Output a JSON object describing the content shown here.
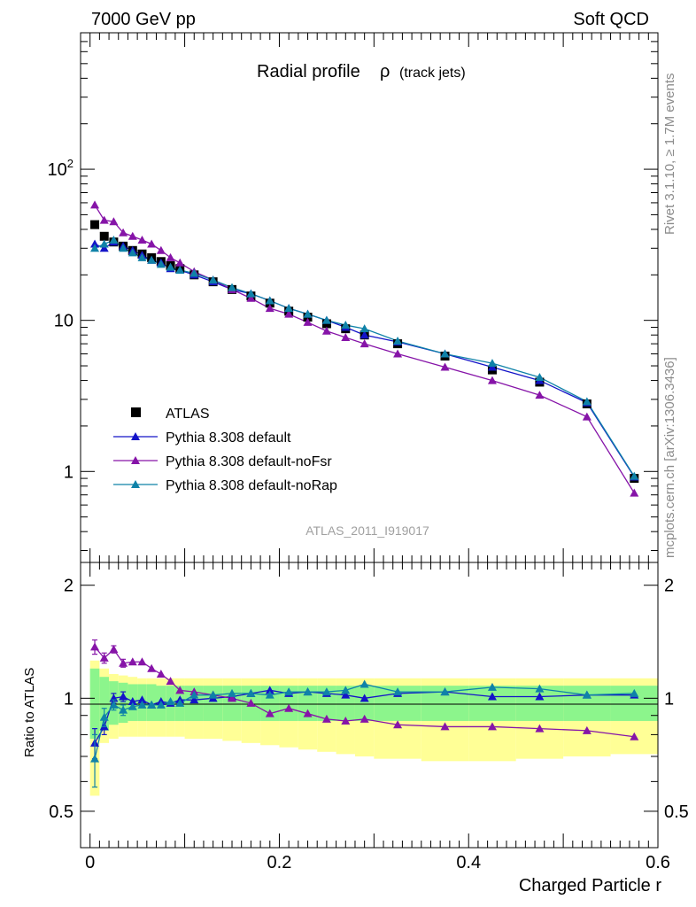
{
  "header": {
    "left": "7000 GeV pp",
    "right": "Soft QCD"
  },
  "side": {
    "rivet": "Rivet 3.1.10, ≥ 1.7M events",
    "mcplots": "mcplots.cern.ch [arXiv:1306.3436]"
  },
  "analysis_id": "ATLAS_2011_I919017",
  "colors": {
    "data": "#000000",
    "default": "#1414c8",
    "noFsr": "#8614a8",
    "noRap": "#0f82a8",
    "band_inner": "#8cf58c",
    "band_outer": "#ffff96"
  },
  "chart_data": [
    {
      "type": "scatter",
      "panel": "main",
      "title": "Radial profile",
      "title_symbol": "ρ",
      "title_sub": "(track jets)",
      "xlabel": "",
      "ylabel": "",
      "xlim": [
        -0.01,
        0.6
      ],
      "ylim": [
        0.25,
        800
      ],
      "yscale": "log",
      "yticks": [
        {
          "v": 1,
          "label": "1"
        },
        {
          "v": 10,
          "label": "10"
        },
        {
          "v": 100,
          "label": "10",
          "sup": "2"
        }
      ],
      "legend_position": "bottom-left",
      "x": [
        0.005,
        0.015,
        0.025,
        0.035,
        0.045,
        0.055,
        0.065,
        0.075,
        0.085,
        0.095,
        0.11,
        0.13,
        0.15,
        0.17,
        0.19,
        0.21,
        0.23,
        0.25,
        0.27,
        0.29,
        0.325,
        0.375,
        0.425,
        0.475,
        0.525,
        0.575
      ],
      "series": [
        {
          "name": "ATLAS",
          "key": "data",
          "marker": "square",
          "values": [
            43,
            36,
            33,
            31,
            29,
            27.5,
            26,
            24.5,
            23,
            22,
            20,
            18,
            16,
            14.5,
            13,
            11.5,
            10.5,
            9.5,
            8.8,
            8,
            7,
            5.8,
            4.7,
            3.9,
            2.8,
            0.9
          ]
        },
        {
          "name": "Pythia 8.308 default",
          "key": "default",
          "marker": "triangle",
          "values": [
            32,
            30,
            33,
            31,
            29,
            27,
            25,
            24,
            22,
            21.5,
            20,
            18,
            16,
            15,
            13.5,
            12,
            11,
            10,
            9,
            8,
            7.2,
            6,
            4.9,
            4,
            2.85,
            0.92
          ]
        },
        {
          "name": "Pythia 8.308 default-noFsr",
          "key": "noFsr",
          "marker": "triangle",
          "values": [
            58,
            46,
            45,
            38,
            36,
            34,
            32,
            29,
            26,
            24,
            21,
            18.5,
            16,
            14,
            12,
            11,
            9.7,
            8.5,
            7.7,
            7,
            6,
            4.9,
            4,
            3.2,
            2.3,
            0.72
          ]
        },
        {
          "name": "Pythia 8.308 default-noRap",
          "key": "noRap",
          "marker": "triangle",
          "values": [
            30,
            32,
            34,
            30,
            28,
            26,
            25,
            23.5,
            22.5,
            21.5,
            20.5,
            18.5,
            16.5,
            15,
            13.5,
            12,
            11,
            10,
            9.3,
            8.8,
            7.3,
            6,
            5.2,
            4.2,
            2.9,
            0.93
          ]
        }
      ]
    },
    {
      "type": "scatter",
      "panel": "ratio",
      "xlabel": "Charged Particle r",
      "ylabel": "Ratio to ATLAS",
      "xlim": [
        -0.01,
        0.6
      ],
      "ylim": [
        0.4,
        2.3
      ],
      "yscale": "log",
      "yticks": [
        {
          "v": 0.5,
          "label": "0.5"
        },
        {
          "v": 1,
          "label": "1"
        },
        {
          "v": 2,
          "label": "2"
        }
      ],
      "xticks": [
        {
          "v": 0,
          "label": "0"
        },
        {
          "v": 0.2,
          "label": "0.2"
        },
        {
          "v": 0.4,
          "label": "0.4"
        },
        {
          "v": 0.6,
          "label": "0.6"
        }
      ],
      "band_edges": [
        0,
        0.01,
        0.02,
        0.03,
        0.04,
        0.05,
        0.06,
        0.07,
        0.08,
        0.09,
        0.1,
        0.12,
        0.14,
        0.16,
        0.18,
        0.2,
        0.22,
        0.24,
        0.26,
        0.28,
        0.3,
        0.35,
        0.4,
        0.45,
        0.5,
        0.55,
        0.6
      ],
      "band_inner": [
        [
          0.78,
          1.2
        ],
        [
          0.82,
          1.14
        ],
        [
          0.85,
          1.11
        ],
        [
          0.86,
          1.1
        ],
        [
          0.87,
          1.09
        ],
        [
          0.87,
          1.09
        ],
        [
          0.87,
          1.09
        ],
        [
          0.87,
          1.08
        ],
        [
          0.87,
          1.08
        ],
        [
          0.87,
          1.08
        ],
        [
          0.87,
          1.08
        ],
        [
          0.87,
          1.08
        ],
        [
          0.87,
          1.08
        ],
        [
          0.87,
          1.08
        ],
        [
          0.87,
          1.08
        ],
        [
          0.87,
          1.08
        ],
        [
          0.87,
          1.08
        ],
        [
          0.87,
          1.08
        ],
        [
          0.87,
          1.08
        ],
        [
          0.87,
          1.08
        ],
        [
          0.87,
          1.08
        ],
        [
          0.87,
          1.08
        ],
        [
          0.87,
          1.08
        ],
        [
          0.87,
          1.08
        ],
        [
          0.87,
          1.08
        ],
        [
          0.87,
          1.08
        ]
      ],
      "band_outer": [
        [
          0.55,
          1.26
        ],
        [
          0.76,
          1.2
        ],
        [
          0.78,
          1.16
        ],
        [
          0.79,
          1.15
        ],
        [
          0.79,
          1.14
        ],
        [
          0.79,
          1.13
        ],
        [
          0.79,
          1.13
        ],
        [
          0.79,
          1.13
        ],
        [
          0.79,
          1.13
        ],
        [
          0.79,
          1.13
        ],
        [
          0.78,
          1.13
        ],
        [
          0.78,
          1.13
        ],
        [
          0.77,
          1.13
        ],
        [
          0.76,
          1.13
        ],
        [
          0.75,
          1.13
        ],
        [
          0.74,
          1.13
        ],
        [
          0.73,
          1.13
        ],
        [
          0.72,
          1.13
        ],
        [
          0.71,
          1.13
        ],
        [
          0.7,
          1.13
        ],
        [
          0.69,
          1.13
        ],
        [
          0.68,
          1.13
        ],
        [
          0.68,
          1.13
        ],
        [
          0.69,
          1.13
        ],
        [
          0.7,
          1.13
        ],
        [
          0.71,
          1.13
        ]
      ],
      "x": [
        0.005,
        0.015,
        0.025,
        0.035,
        0.045,
        0.055,
        0.065,
        0.075,
        0.085,
        0.095,
        0.11,
        0.13,
        0.15,
        0.17,
        0.19,
        0.21,
        0.23,
        0.25,
        0.27,
        0.29,
        0.325,
        0.375,
        0.425,
        0.475,
        0.525,
        0.575
      ],
      "series": [
        {
          "name": "Pythia 8.308 default",
          "key": "default",
          "values": [
            0.76,
            0.84,
            1.0,
            1.01,
            0.98,
            0.99,
            0.96,
            0.98,
            0.97,
            0.99,
            0.99,
            1.0,
            1.01,
            1.03,
            1.05,
            1.03,
            1.04,
            1.03,
            1.02,
            1.0,
            1.03,
            1.04,
            1.01,
            1.01,
            1.02,
            1.02
          ],
          "errors": [
            0.07,
            0.04,
            0.03,
            0.03,
            0.02,
            0.02,
            0.02,
            0.02,
            0.02,
            0.02,
            0.01,
            0.01,
            0.01,
            0.01,
            0.01,
            0.01,
            0.01,
            0.01,
            0.01,
            0.01,
            0.01,
            0.01,
            0.01,
            0.01,
            0.01,
            0.01
          ]
        },
        {
          "name": "Pythia 8.308 default-noFsr",
          "key": "noFsr",
          "values": [
            1.37,
            1.28,
            1.35,
            1.24,
            1.25,
            1.25,
            1.2,
            1.16,
            1.11,
            1.05,
            1.04,
            1.02,
            1.0,
            0.97,
            0.91,
            0.94,
            0.91,
            0.88,
            0.87,
            0.88,
            0.85,
            0.84,
            0.84,
            0.83,
            0.82,
            0.79
          ],
          "errors": [
            0.06,
            0.04,
            0.03,
            0.03,
            0.02,
            0.02,
            0.02,
            0.02,
            0.02,
            0.02,
            0.01,
            0.01,
            0.01,
            0.01,
            0.01,
            0.01,
            0.01,
            0.01,
            0.01,
            0.01,
            0.01,
            0.01,
            0.01,
            0.01,
            0.01,
            0.01
          ]
        },
        {
          "name": "Pythia 8.308 default-noRap",
          "key": "noRap",
          "values": [
            0.69,
            0.89,
            0.96,
            0.93,
            0.95,
            0.96,
            0.96,
            0.96,
            0.98,
            0.97,
            1.02,
            1.02,
            1.03,
            1.03,
            1.02,
            1.04,
            1.04,
            1.04,
            1.05,
            1.09,
            1.04,
            1.04,
            1.07,
            1.06,
            1.02,
            1.03
          ],
          "errors": [
            0.11,
            0.05,
            0.03,
            0.03,
            0.02,
            0.02,
            0.02,
            0.02,
            0.02,
            0.02,
            0.01,
            0.01,
            0.01,
            0.01,
            0.01,
            0.01,
            0.01,
            0.01,
            0.01,
            0.01,
            0.01,
            0.01,
            0.01,
            0.01,
            0.01,
            0.01
          ]
        }
      ]
    }
  ]
}
